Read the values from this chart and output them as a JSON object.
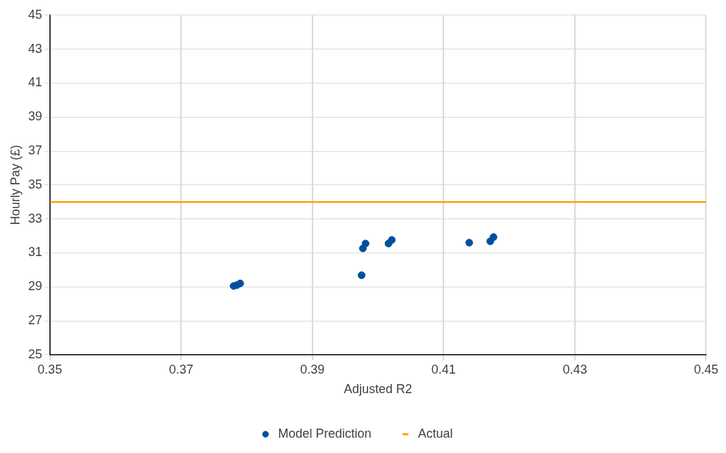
{
  "chart_data": {
    "type": "scatter",
    "xlabel": "Adjusted R2",
    "ylabel": "Hourly Pay (£)",
    "xlim": [
      0.35,
      0.45
    ],
    "xticks": [
      0.35,
      0.37,
      0.39,
      0.41,
      0.43,
      0.45
    ],
    "ylim": [
      25,
      45
    ],
    "yticks": [
      25,
      27,
      29,
      31,
      33,
      35,
      37,
      39,
      41,
      43,
      45
    ],
    "grid": true,
    "legend": "bottom",
    "series": [
      {
        "name": "Model Prediction",
        "type": "scatter",
        "marker": "circle",
        "color": "#0050a0",
        "x": [
          0.378,
          0.3785,
          0.379,
          0.3975,
          0.3977,
          0.3981,
          0.4016,
          0.4021,
          0.4139,
          0.4171,
          0.4176
        ],
        "values": [
          29.05,
          29.1,
          29.2,
          29.68,
          31.26,
          31.55,
          31.55,
          31.76,
          31.6,
          31.68,
          31.93
        ]
      },
      {
        "name": "Actual",
        "type": "line",
        "color": "#ffa000",
        "x": [
          0.35,
          0.45
        ],
        "values": [
          34,
          34
        ]
      }
    ]
  }
}
